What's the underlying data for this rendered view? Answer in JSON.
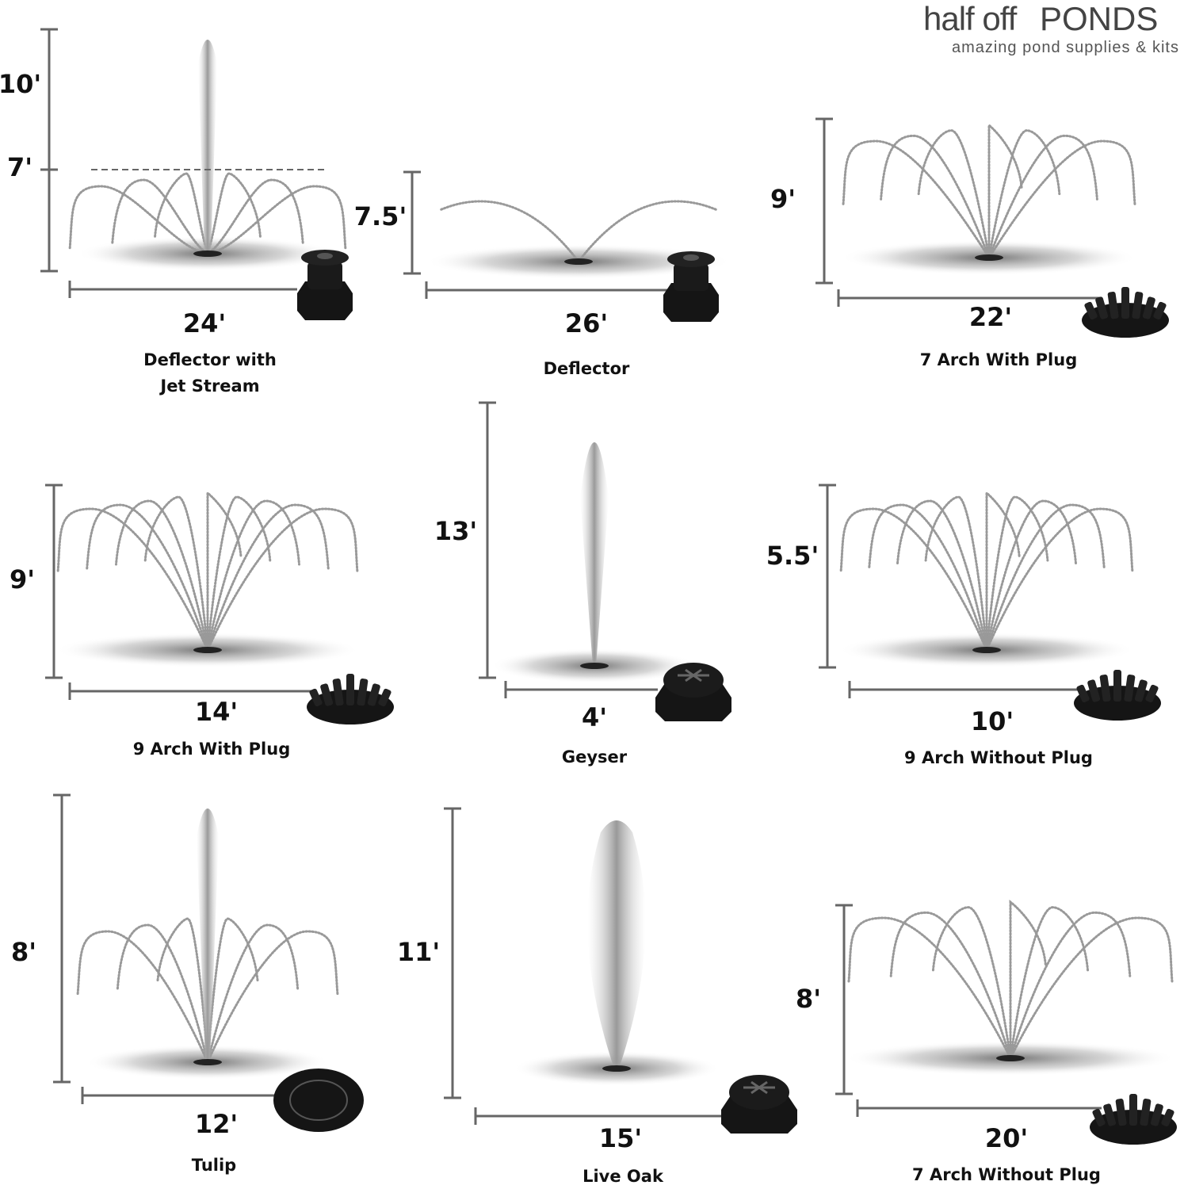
{
  "brand": {
    "name_light": "half off",
    "name_bold": "PONDS",
    "tagline": "amazing pond supplies & kits"
  },
  "nozzles": [
    {
      "heights": [
        "10'",
        "7'"
      ],
      "width": "24'",
      "name": [
        "Deflector with",
        "Jet Stream"
      ]
    },
    {
      "heights": [
        "7.5'"
      ],
      "width": "26'",
      "name": [
        "Deflector"
      ]
    },
    {
      "heights": [
        "9'"
      ],
      "width": "22'",
      "name": [
        "7 Arch With Plug"
      ]
    },
    {
      "heights": [
        "9'"
      ],
      "width": "14'",
      "name": [
        "9 Arch With Plug"
      ]
    },
    {
      "heights": [
        "13'"
      ],
      "width": "4'",
      "name": [
        "Geyser"
      ]
    },
    {
      "heights": [
        "5.5'"
      ],
      "width": "10'",
      "name": [
        "9 Arch Without Plug"
      ]
    },
    {
      "heights": [
        "8'"
      ],
      "width": "12'",
      "name": [
        "Tulip"
      ]
    },
    {
      "heights": [
        "11'"
      ],
      "width": "15'",
      "name": [
        "Live Oak"
      ]
    },
    {
      "heights": [
        "8'"
      ],
      "width": "20'",
      "name": [
        "7 Arch Without Plug"
      ]
    }
  ]
}
